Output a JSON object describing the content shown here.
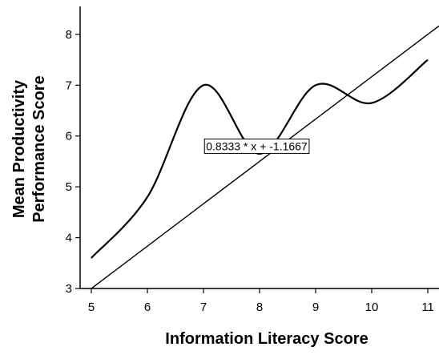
{
  "chart_data": {
    "type": "line",
    "title": "",
    "xlabel": "Information Literacy Score",
    "ylabel_lines": [
      "Mean Productivity",
      "Performance Score"
    ],
    "xlim": [
      4.8,
      11.2
    ],
    "ylim": [
      3,
      8.55
    ],
    "x_ticks": [
      5,
      6,
      7,
      8,
      9,
      10,
      11
    ],
    "y_ticks": [
      3,
      4,
      5,
      6,
      7,
      8
    ],
    "grid": false,
    "legend": "none",
    "series": [
      {
        "style": "smooth-curve",
        "color": "#000000",
        "points": [
          {
            "x": 5,
            "y": 3.6
          },
          {
            "x": 6,
            "y": 4.8
          },
          {
            "x": 7,
            "y": 7.0
          },
          {
            "x": 8,
            "y": 5.65
          },
          {
            "x": 9,
            "y": 7.0
          },
          {
            "x": 10,
            "y": 6.65
          },
          {
            "x": 11,
            "y": 7.5
          }
        ]
      },
      {
        "style": "linear-fit",
        "color": "#000000",
        "slope": 0.8333,
        "intercept": -1.1667,
        "x_start": 5,
        "x_end": 11.2
      }
    ],
    "annotation": {
      "text": "0.8333 * x + -1.1667",
      "x": 7.95,
      "y": 5.8
    }
  }
}
